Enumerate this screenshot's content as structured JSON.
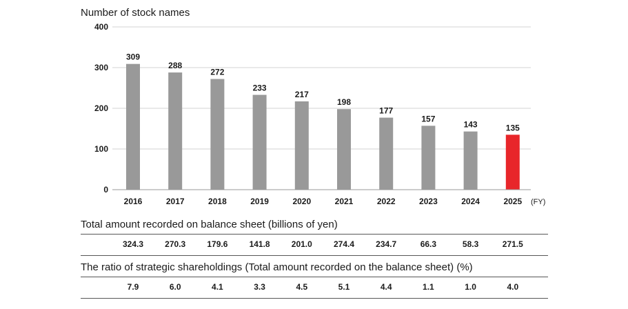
{
  "chart_data": {
    "type": "bar",
    "ylabel": "Number of stock names",
    "xunit": "(FY)",
    "categories": [
      "2016",
      "2017",
      "2018",
      "2019",
      "2020",
      "2021",
      "2022",
      "2023",
      "2024",
      "2025"
    ],
    "values": [
      309,
      288,
      272,
      233,
      217,
      198,
      177,
      157,
      143,
      135
    ],
    "ylim": [
      0,
      400
    ],
    "yticks": [
      0,
      100,
      200,
      300,
      400
    ],
    "grid": true,
    "bar_color": "#999999",
    "highlight_color": "#e8262a",
    "highlight_category": "2025"
  },
  "balance_sheet": {
    "title": "Total amount recorded on balance sheet (billions of yen)",
    "values": [
      "324.3",
      "270.3",
      "179.6",
      "141.8",
      "201.0",
      "274.4",
      "234.7",
      "66.3",
      "58.3",
      "271.5"
    ]
  },
  "ratio": {
    "title": "The ratio of strategic shareholdings (Total amount recorded on the balance sheet) (%)",
    "values": [
      "7.9",
      "6.0",
      "4.1",
      "3.3",
      "4.5",
      "5.1",
      "4.4",
      "1.1",
      "1.0",
      "4.0"
    ]
  }
}
